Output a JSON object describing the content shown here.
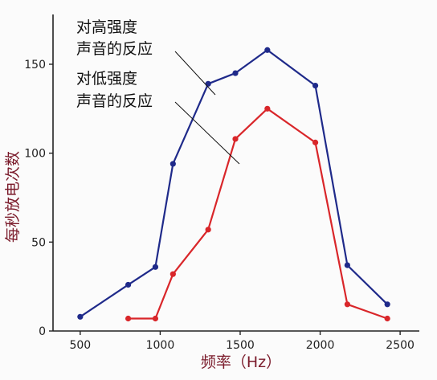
{
  "chart_data": {
    "type": "line",
    "x": [
      500,
      800,
      970,
      1080,
      1300,
      1470,
      1670,
      1970,
      2170,
      2420
    ],
    "series": [
      {
        "name": "对高强度声音的反应",
        "color": "#1f2a8a",
        "points": [
          [
            500,
            8
          ],
          [
            800,
            26
          ],
          [
            970,
            36
          ],
          [
            1080,
            94
          ],
          [
            1300,
            139
          ],
          [
            1470,
            145
          ],
          [
            1670,
            158
          ],
          [
            1970,
            138
          ],
          [
            2170,
            37
          ],
          [
            2420,
            15
          ]
        ]
      },
      {
        "name": "对低强度声音的反应",
        "color": "#d9262a",
        "points": [
          [
            800,
            7
          ],
          [
            970,
            7
          ],
          [
            1080,
            32
          ],
          [
            1300,
            57
          ],
          [
            1470,
            108
          ],
          [
            1670,
            125
          ],
          [
            1970,
            106
          ],
          [
            2170,
            15
          ],
          [
            2420,
            7
          ]
        ]
      }
    ],
    "xlabel": "频率（Hz）",
    "ylabel": "每秒放电次数",
    "xticks": [
      500,
      1000,
      1500,
      2000,
      2500
    ],
    "yticks": [
      0,
      50,
      100,
      150
    ],
    "xlim": [
      330,
      2620
    ],
    "ylim": [
      0,
      178
    ],
    "annotations": [
      {
        "line1": "对高强度",
        "line2": "声音的反应",
        "target_series": 0
      },
      {
        "line1": "对低强度",
        "line2": "声音的反应",
        "target_series": 1
      }
    ],
    "grid": false,
    "legend": "none"
  }
}
